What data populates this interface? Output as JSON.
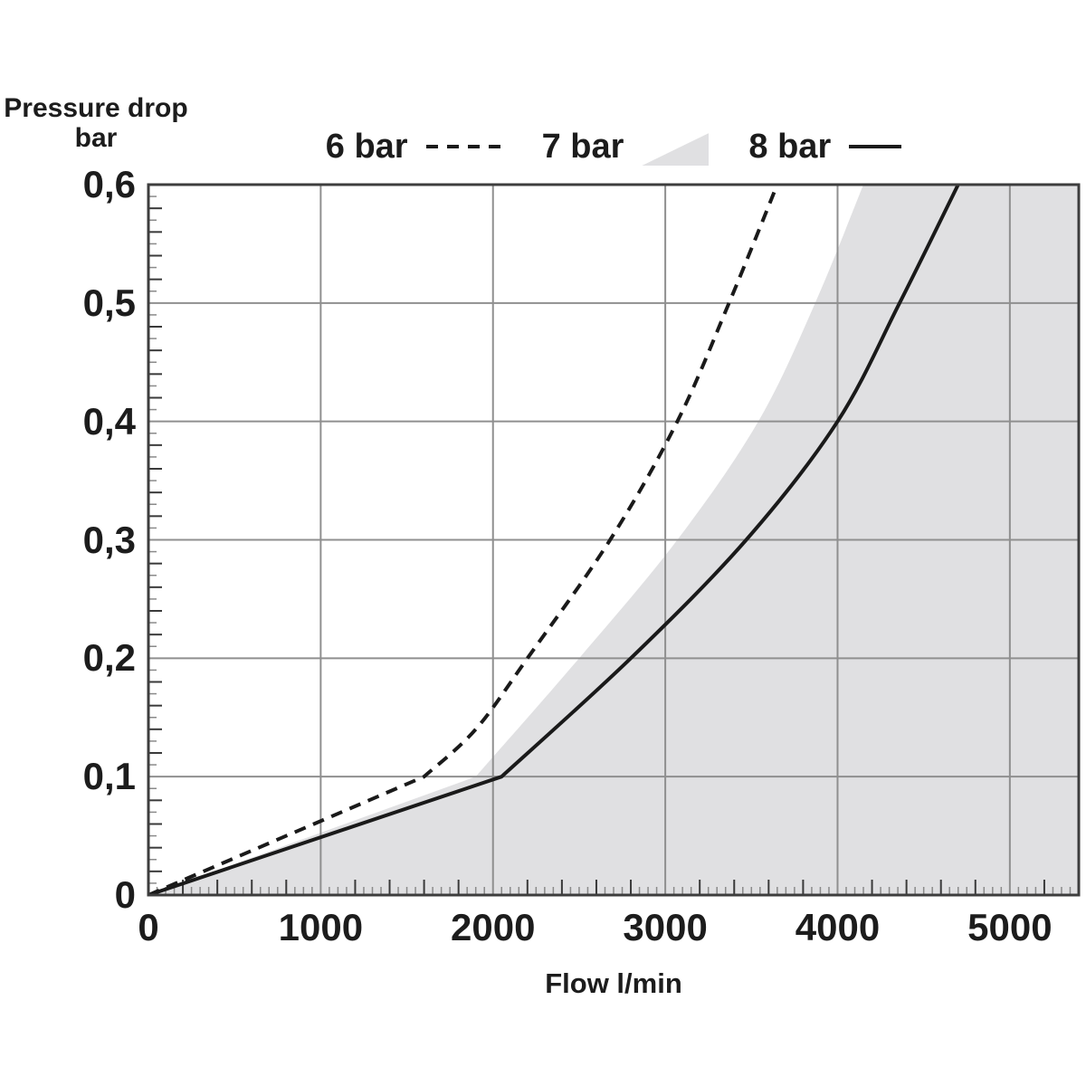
{
  "title": {
    "line1": "Pressure drop",
    "line2": "bar"
  },
  "x_axis": {
    "label": "Flow l/min",
    "ticks": [
      "0",
      "1000",
      "2000",
      "3000",
      "4000",
      "5000"
    ],
    "tick_values": [
      0,
      1000,
      2000,
      3000,
      4000,
      5000
    ],
    "minor_step": 50,
    "medium_step": 200
  },
  "y_axis": {
    "ticks": [
      "0,6",
      "0,5",
      "0,4",
      "0,3",
      "0,2",
      "0,1",
      "0"
    ],
    "tick_values": [
      0.6,
      0.5,
      0.4,
      0.3,
      0.2,
      0.1,
      0
    ],
    "minor_step": 0.01,
    "medium_step": 0.02
  },
  "legend": [
    {
      "label": "6 bar",
      "swatch": "dashed-line"
    },
    {
      "label": "7 bar",
      "swatch": "area-triangle"
    },
    {
      "label": "8 bar",
      "swatch": "solid-line"
    }
  ],
  "colors": {
    "line": "#1a1a1a",
    "area_fill": "#e0e0e2",
    "grid": "#8f8f8f",
    "border": "#3d3d3d",
    "tick_major": "#3a3a3a",
    "tick_minor": "#8a8a8a",
    "text": "#1c1c1c",
    "background": "#ffffff"
  },
  "chart_data": {
    "type": "line",
    "title": "Pressure drop vs Flow",
    "xlabel": "Flow l/min",
    "ylabel": "Pressure drop bar",
    "xlim": [
      0,
      5400
    ],
    "ylim": [
      0,
      0.6
    ],
    "grid": true,
    "legend_position": "top",
    "series": [
      {
        "name": "6 bar",
        "style": "dashed",
        "points": [
          [
            0,
            0
          ],
          [
            1600,
            0.1
          ],
          [
            1900,
            0.14
          ],
          [
            2200,
            0.2
          ],
          [
            2680,
            0.3
          ],
          [
            3070,
            0.4
          ],
          [
            3370,
            0.5
          ],
          [
            3650,
            0.6
          ]
        ]
      },
      {
        "name": "7 bar",
        "style": "area",
        "points": [
          [
            0,
            0
          ],
          [
            1900,
            0.1
          ],
          [
            2500,
            0.2
          ],
          [
            3070,
            0.3
          ],
          [
            3540,
            0.4
          ],
          [
            3870,
            0.5
          ],
          [
            4150,
            0.6
          ]
        ]
      },
      {
        "name": "8 bar",
        "style": "solid",
        "points": [
          [
            0,
            0
          ],
          [
            2050,
            0.1
          ],
          [
            2800,
            0.2
          ],
          [
            3470,
            0.3
          ],
          [
            4000,
            0.4
          ],
          [
            4360,
            0.5
          ],
          [
            4700,
            0.6
          ]
        ]
      }
    ]
  }
}
